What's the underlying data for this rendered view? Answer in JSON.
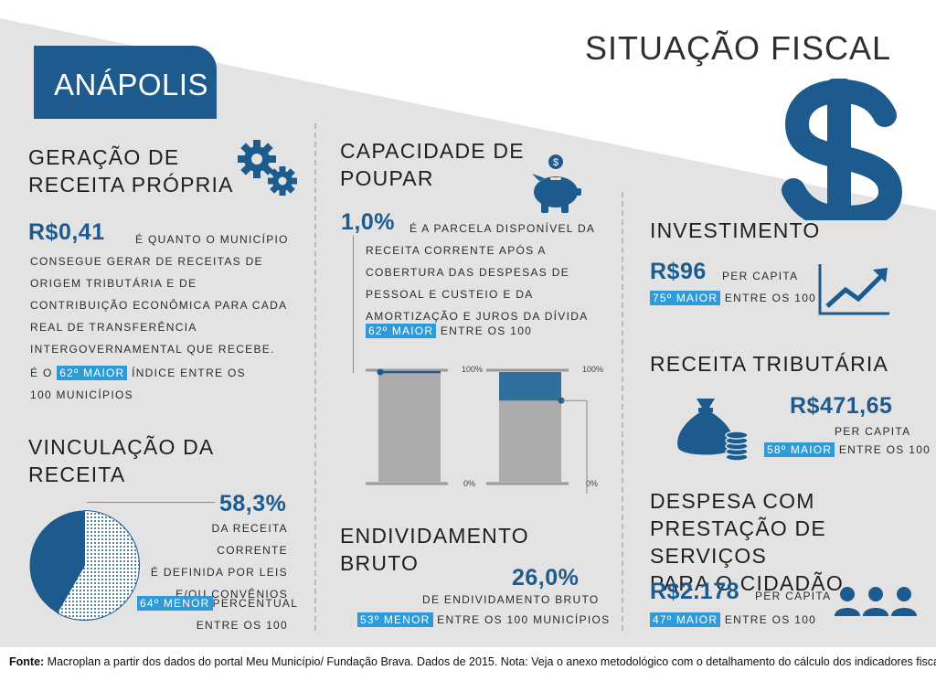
{
  "header": {
    "city": "ANÁPOLIS",
    "title": "SITUAÇÃO FISCAL"
  },
  "receita_propria": {
    "title_line1": "GERAÇÃO DE",
    "title_line2": "RECEITA PRÓPRIA",
    "value": "R$0,41",
    "lines": [
      "é quanto o município",
      "consegue gerar de receitas de",
      "origem tributária e de",
      "contribuição econômica para cada",
      "real de transferência",
      "intergovernamental que recebe."
    ],
    "rank_prefix": "é o",
    "rank": "62º MAIOR",
    "rank_suffix": "índice entre os",
    "rank_line2": "100 municípios"
  },
  "vinculacao": {
    "title_line1": "VINCULAÇÃO DA",
    "title_line2": "RECEITA",
    "value": "58,3%",
    "lines": [
      "da receita corrente",
      "é definida por leis",
      "e/ou convênios"
    ],
    "rank": "64º MENOR",
    "rank_suffix": "percentual",
    "rank_line2": "entre os 100"
  },
  "poupar": {
    "title_line1": "CAPACIDADE DE",
    "title_line2": "POUPAR",
    "value": "1,0%",
    "lines": [
      "é a parcela disponível da",
      "receita corrente após a",
      "cobertura das despesas de",
      "pessoal e custeio e da",
      "amortização e juros da dívida"
    ],
    "rank": "62º MAIOR",
    "rank_suffix": "entre os 100"
  },
  "bars": {
    "top_label": "100%",
    "bottom_label": "0%",
    "poupar_fraction": 0.01,
    "endividamento_fraction": 0.26
  },
  "endividamento": {
    "title_line1": "ENDIVIDAMENTO",
    "title_line2": "BRUTO",
    "value": "26,0%",
    "line": "de endividamento bruto",
    "rank": "53º MENOR",
    "rank_suffix": "entre os 100 municípios"
  },
  "investimento": {
    "title": "INVESTIMENTO",
    "value": "R$96",
    "per": "per capita",
    "rank": "75º MAIOR",
    "rank_suffix": "entre os 100"
  },
  "tributaria": {
    "title": "RECEITA TRIBUTÁRIA",
    "value": "R$471,65",
    "per": "per capita",
    "rank": "58º MAIOR",
    "rank_suffix": "entre os 100"
  },
  "despesa": {
    "title_line1": "DESPESA COM",
    "title_line2": "PRESTAÇÃO DE SERVIÇOS",
    "title_line3": "PARA O CIDADÃO",
    "value": "R$2.178",
    "per": "per capita",
    "rank": "47º MAIOR",
    "rank_suffix": "entre os 100"
  },
  "vinculacao_pie": {
    "fraction": 0.583
  },
  "footer": {
    "label": "Fonte:",
    "text": "Macroplan a partir dos dados do portal Meu Município/ Fundação Brava. Dados de 2015. Nota: Veja o anexo metodológico com o detalhamento do cálculo dos indicadores fiscais."
  },
  "colors": {
    "brand": "#1d5b8e",
    "highlight": "#2e9ad8",
    "background": "#e3e3e3",
    "bar_base": "#ababab"
  },
  "icons": [
    "gears-icon",
    "piggy-bank-icon",
    "dollar-sign-icon",
    "growth-chart-icon",
    "money-bag-icon",
    "people-icon"
  ]
}
